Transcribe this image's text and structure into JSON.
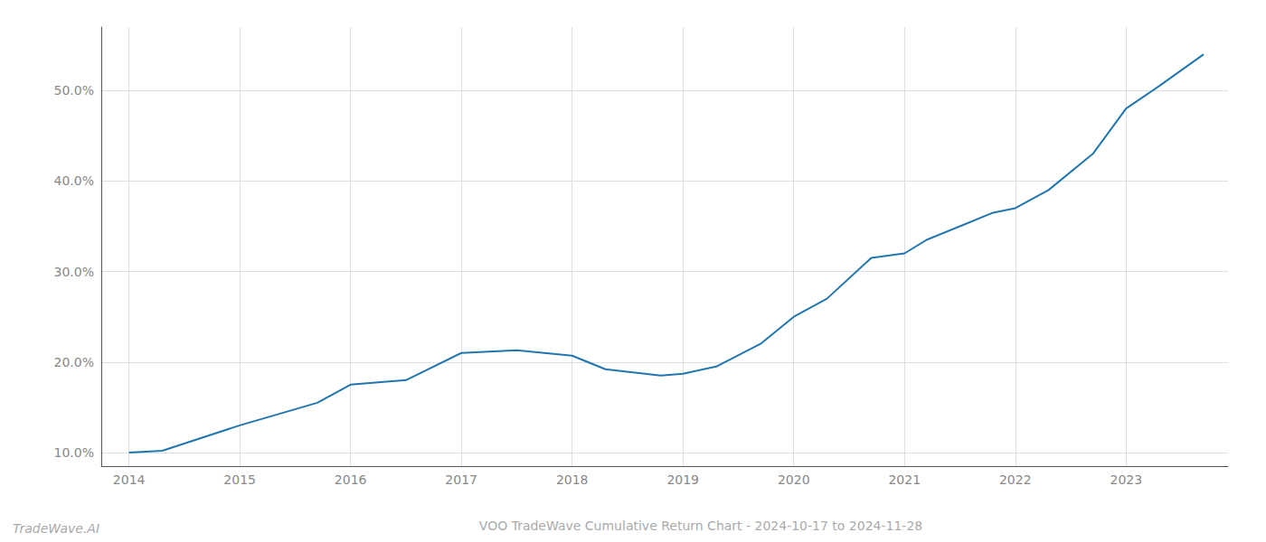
{
  "chart_data": {
    "type": "line",
    "title": "VOO TradeWave Cumulative Return Chart - 2024-10-17 to 2024-11-28",
    "annotations": [
      "TradeWave.AI"
    ],
    "x": [
      2014.0,
      2014.3,
      2015.0,
      2015.7,
      2016.0,
      2016.5,
      2017.0,
      2017.5,
      2018.0,
      2018.3,
      2018.8,
      2019.0,
      2019.3,
      2019.7,
      2020.0,
      2020.3,
      2020.7,
      2021.0,
      2021.2,
      2021.5,
      2021.8,
      2022.0,
      2022.3,
      2022.7,
      2023.0,
      2023.3,
      2023.7
    ],
    "values": [
      10.0,
      10.2,
      13.0,
      15.5,
      17.5,
      18.0,
      21.0,
      21.3,
      20.7,
      19.2,
      18.5,
      18.7,
      19.5,
      22.0,
      25.0,
      27.0,
      31.5,
      32.0,
      33.5,
      35.0,
      36.5,
      37.0,
      39.0,
      43.0,
      48.0,
      50.5,
      54.0
    ],
    "color": "#2176ae",
    "xlim": [
      2013.75,
      2023.92
    ],
    "xticks": [
      2014,
      2015,
      2016,
      2017,
      2018,
      2019,
      2020,
      2021,
      2022,
      2023
    ],
    "ylim": [
      8.5,
      57.0
    ],
    "yticks": [
      {
        "value": 10.0,
        "label": "10.0%"
      },
      {
        "value": 20.0,
        "label": "20.0%"
      },
      {
        "value": 30.0,
        "label": "30.0%"
      },
      {
        "value": 40.0,
        "label": "40.0%"
      },
      {
        "value": 50.0,
        "label": "50.0%"
      }
    ],
    "grid": true
  }
}
